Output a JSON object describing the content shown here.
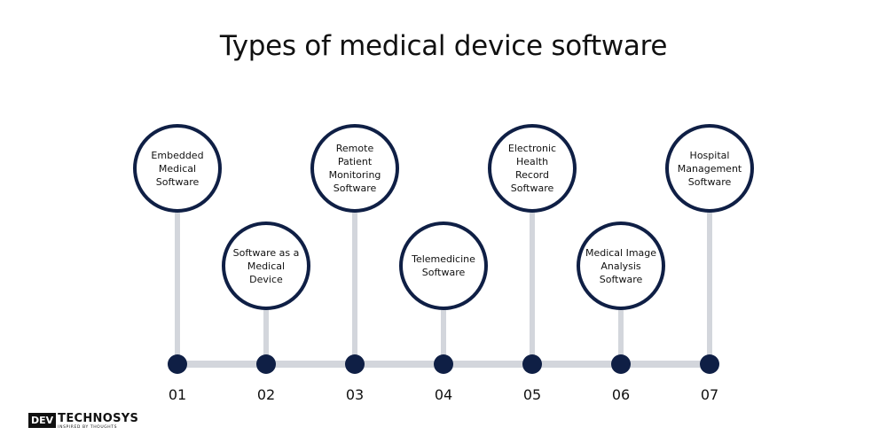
{
  "title": "Types of medical device software",
  "steps": [
    {
      "number": "01",
      "label": "Embedded\nMedical Software",
      "position": "top"
    },
    {
      "number": "02",
      "label": "Software as a\nMedical\nDevice",
      "position": "bottom"
    },
    {
      "number": "03",
      "label": "Remote Patient\nMonitoring\nSoftware",
      "position": "top"
    },
    {
      "number": "04",
      "label": "Telemedicine\nSoftware",
      "position": "bottom"
    },
    {
      "number": "05",
      "label": "Electronic Health\nRecord Software",
      "position": "top"
    },
    {
      "number": "06",
      "label": "Medical Image\nAnalysis\nSoftware",
      "position": "bottom"
    },
    {
      "number": "07",
      "label": "Hospital\nManagement\nSoftware",
      "position": "top"
    }
  ],
  "logo": {
    "mark": "DEV",
    "name": "TECHNOSYS",
    "tagline": "INSPIRED BY THOUGHTS"
  },
  "colors": {
    "navy": "#0f1f45",
    "connector": "#d3d6dc"
  }
}
